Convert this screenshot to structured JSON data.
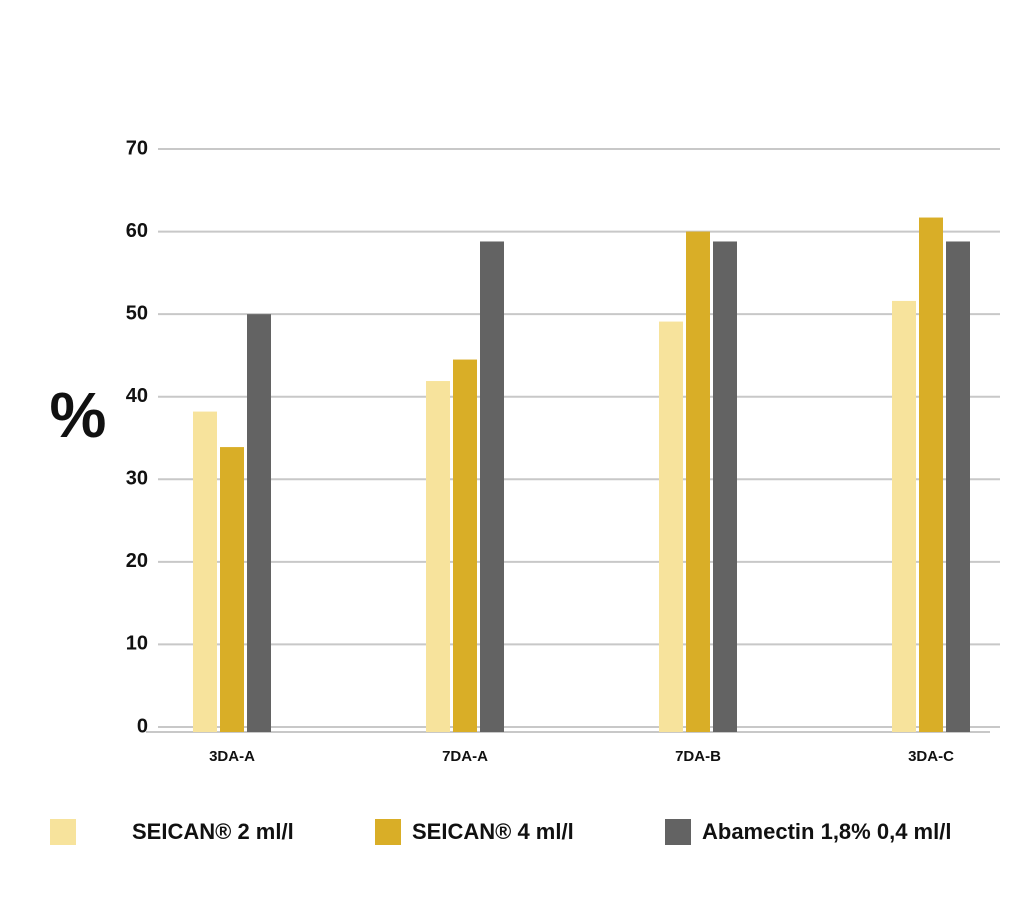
{
  "chart_data": {
    "type": "bar",
    "y_label": "%",
    "categories": [
      "3DA-A",
      "7DA-A",
      "7DA-B",
      "3DA-C"
    ],
    "series": [
      {
        "name": "SEICAN® 2 ml/l",
        "color": "#f7e39c",
        "values": [
          38.2,
          41.9,
          49.1,
          51.6
        ]
      },
      {
        "name": "SEICAN® 4 ml/l",
        "color": "#d9ae27",
        "values": [
          33.9,
          44.5,
          60,
          61.7
        ]
      },
      {
        "name": "Abamectin 1,8% 0,4 ml/l",
        "color": "#636363",
        "values": [
          50,
          58.8,
          58.8,
          58.8
        ]
      }
    ],
    "ylim": [
      0,
      70
    ],
    "yticks": [
      0,
      10,
      20,
      30,
      40,
      50,
      60,
      70
    ],
    "grid": true
  }
}
